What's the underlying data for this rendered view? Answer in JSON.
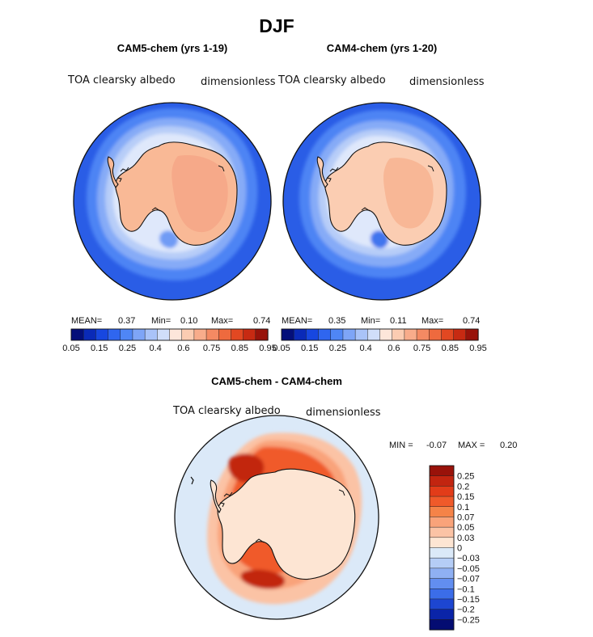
{
  "figure": {
    "season": "DJF",
    "diff_title": "CAM5-chem - CAM4-chem"
  },
  "chart_data": [
    {
      "type": "heatmap",
      "projection": "south-polar-stereographic",
      "title": "CAM5-chem (yrs 1-19)",
      "variable": "TOA clearsky albedo",
      "units": "dimensionless",
      "mean_label": "MEAN=",
      "mean": "0.37",
      "min_label": "Min=",
      "min": "0.10",
      "max_label": "Max=",
      "max": "0.74",
      "levels": [
        0.05,
        0.1,
        0.15,
        0.2,
        0.25,
        0.3,
        0.35,
        0.4,
        0.45,
        0.5,
        0.55,
        0.6,
        0.65,
        0.7,
        0.75,
        0.8,
        0.85,
        0.9,
        0.95
      ],
      "colorbar_ticks": [
        "0.05",
        "0.15",
        "0.25",
        "0.4",
        "0.6",
        "0.75",
        "0.85",
        "0.95"
      ],
      "region_values": {
        "open_ocean": 0.1,
        "outer_ice": 0.35,
        "inner_ice": 0.5,
        "antarctica": 0.62,
        "east_plateau": 0.7
      }
    },
    {
      "type": "heatmap",
      "projection": "south-polar-stereographic",
      "title": "CAM4-chem (yrs 1-20)",
      "variable": "TOA clearsky albedo",
      "units": "dimensionless",
      "mean_label": "MEAN=",
      "mean": "0.35",
      "min_label": "Min=",
      "min": "0.11",
      "max_label": "Max=",
      "max": "0.74",
      "levels": [
        0.05,
        0.1,
        0.15,
        0.2,
        0.25,
        0.3,
        0.35,
        0.4,
        0.45,
        0.5,
        0.55,
        0.6,
        0.65,
        0.7,
        0.75,
        0.8,
        0.85,
        0.9,
        0.95
      ],
      "colorbar_ticks": [
        "0.05",
        "0.15",
        "0.25",
        "0.4",
        "0.6",
        "0.75",
        "0.85",
        "0.95"
      ],
      "region_values": {
        "open_ocean": 0.1,
        "outer_ice": 0.3,
        "inner_ice": 0.45,
        "antarctica": 0.6,
        "east_plateau": 0.68
      }
    },
    {
      "type": "heatmap",
      "projection": "south-polar-stereographic",
      "title": "CAM5-chem - CAM4-chem",
      "variable": "TOA clearsky albedo",
      "units": "dimensionless",
      "min_label": "MIN =",
      "min": "-0.07",
      "max_label": "MAX =",
      "max": "0.20",
      "levels": [
        -0.25,
        -0.2,
        -0.15,
        -0.1,
        -0.07,
        -0.05,
        -0.03,
        0,
        0.03,
        0.05,
        0.07,
        0.1,
        0.15,
        0.2,
        0.25
      ],
      "colorbar_ticks": [
        "0.25",
        "0.2",
        "0.15",
        "0.1",
        "0.07",
        "0.05",
        "0.03",
        "0",
        "−0.03",
        "−0.05",
        "−0.07",
        "−0.1",
        "−0.15",
        "−0.2",
        "−0.25"
      ],
      "region_values": {
        "ocean": 0.0,
        "continent": 0.02,
        "ice_edge_ring": 0.09,
        "weddell_max": 0.14,
        "ross_max": 0.13
      }
    }
  ],
  "colors": {
    "abs_scale": [
      "#040f7a",
      "#0a2ab8",
      "#1747e0",
      "#2f66ef",
      "#4f86f5",
      "#7ea5f7",
      "#a9c3f8",
      "#d0def9",
      "#fde6da",
      "#fbccb2",
      "#f8ac8b",
      "#f48a63",
      "#ee6a3e",
      "#e24822",
      "#c72a12",
      "#98130a"
    ],
    "diff_scale": [
      "#99120a",
      "#c22510",
      "#e23c19",
      "#f05a2a",
      "#f58348",
      "#f9a37a",
      "#fbc3a5",
      "#fde5d3",
      "#dbe9f8",
      "#b5cdf6",
      "#8fb0f3",
      "#628ef0",
      "#3b6de9",
      "#1d46d1",
      "#0a24a8",
      "#040c72"
    ],
    "coast": "#111111"
  }
}
